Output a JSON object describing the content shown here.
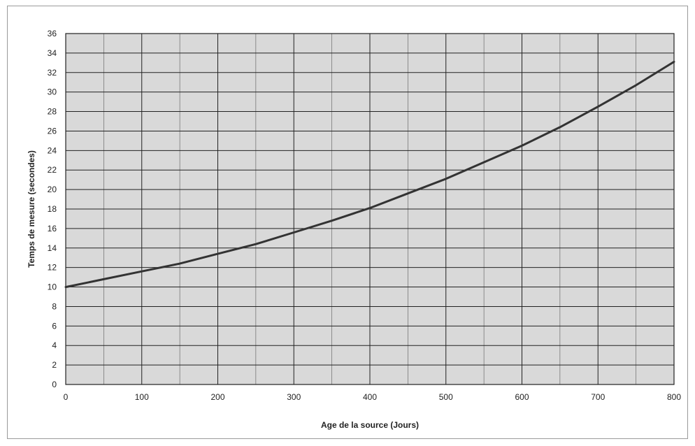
{
  "chart_data": {
    "type": "line",
    "title": "",
    "xlabel": "Age de la source (Jours)",
    "ylabel": "Temps de mesure (secondes)",
    "xlim": [
      0,
      800
    ],
    "ylim": [
      0,
      36
    ],
    "x_ticks": [
      0,
      100,
      200,
      300,
      400,
      500,
      600,
      700,
      800
    ],
    "y_ticks": [
      0,
      2,
      4,
      6,
      8,
      10,
      12,
      14,
      16,
      18,
      20,
      22,
      24,
      26,
      28,
      30,
      32,
      34,
      36
    ],
    "x_minor_step": 50,
    "grid": true,
    "legend": "none",
    "colors": {
      "line": "#333333",
      "grid": "#222222",
      "plot_background": "#d9d9d9"
    },
    "series": [
      {
        "x": [
          0,
          50,
          100,
          150,
          200,
          250,
          300,
          350,
          400,
          450,
          500,
          550,
          600,
          650,
          700,
          750,
          800
        ],
        "y": [
          10,
          10.8,
          11.6,
          12.4,
          13.4,
          14.4,
          15.6,
          16.8,
          18.1,
          19.6,
          21.1,
          22.8,
          24.5,
          26.4,
          28.5,
          30.7,
          33.1
        ]
      }
    ]
  }
}
